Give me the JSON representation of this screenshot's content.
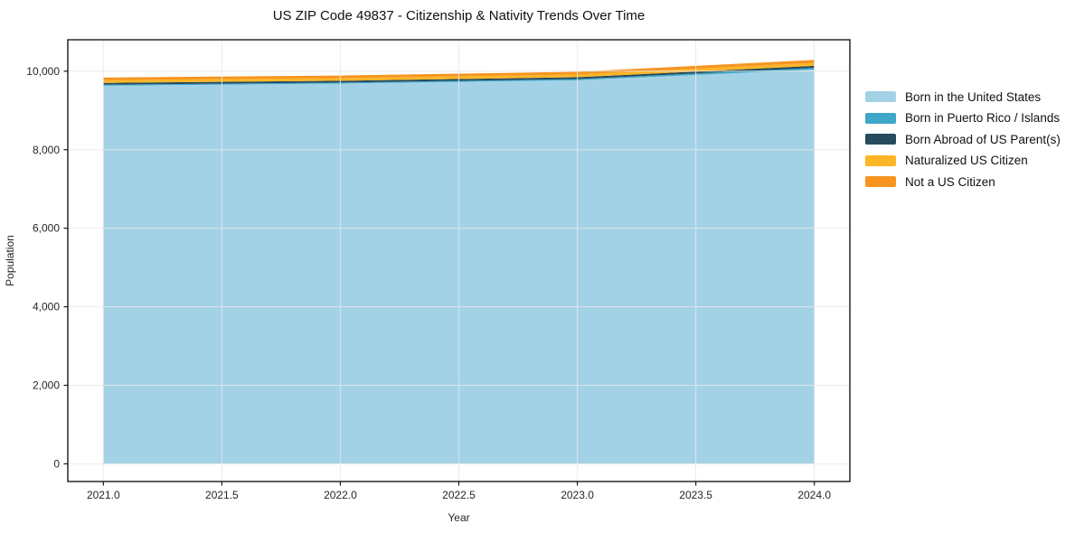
{
  "figure": {
    "title": "US ZIP Code 49837 - Citizenship & Nativity Trends Over Time"
  },
  "chart_data": {
    "type": "area",
    "stacked": true,
    "title": "US ZIP Code 49837 - Citizenship & Nativity Trends Over Time",
    "xlabel": "Year",
    "ylabel": "Population",
    "x": [
      2021.0,
      2022.0,
      2023.0,
      2024.0
    ],
    "series": [
      {
        "name": "Born in the United States",
        "color": "#a3d2e7",
        "values": [
          9630,
          9685,
          9770,
          10040
        ]
      },
      {
        "name": "Born in Puerto Rico / Islands",
        "color": "#3fa7c8",
        "values": [
          25,
          25,
          30,
          45
        ]
      },
      {
        "name": "Born Abroad of US Parent(s)",
        "color": "#264a5e",
        "values": [
          45,
          45,
          45,
          50
        ]
      },
      {
        "name": "Naturalized US Citizen",
        "color": "#fcb626",
        "values": [
          70,
          70,
          70,
          75
        ]
      },
      {
        "name": "Not a US Citizen",
        "color": "#f7941f",
        "values": [
          65,
          65,
          70,
          75
        ]
      }
    ],
    "xlim": [
      2020.85,
      2024.15
    ],
    "ylim": [
      -450,
      10800
    ],
    "xticks": {
      "values": [
        2021.0,
        2021.5,
        2022.0,
        2022.5,
        2023.0,
        2023.5,
        2024.0
      ],
      "labels": [
        "2021.0",
        "2021.5",
        "2022.0",
        "2022.5",
        "2023.0",
        "2023.5",
        "2024.0"
      ]
    },
    "yticks": {
      "values": [
        0,
        2000,
        4000,
        6000,
        8000,
        10000
      ],
      "labels": [
        "0",
        "2,000",
        "4,000",
        "6,000",
        "8,000",
        "10,000"
      ]
    },
    "grid": true,
    "grid_color": "#e8e8e8",
    "spine_color": "#1a1a1a",
    "legend_position": "right-outside"
  }
}
